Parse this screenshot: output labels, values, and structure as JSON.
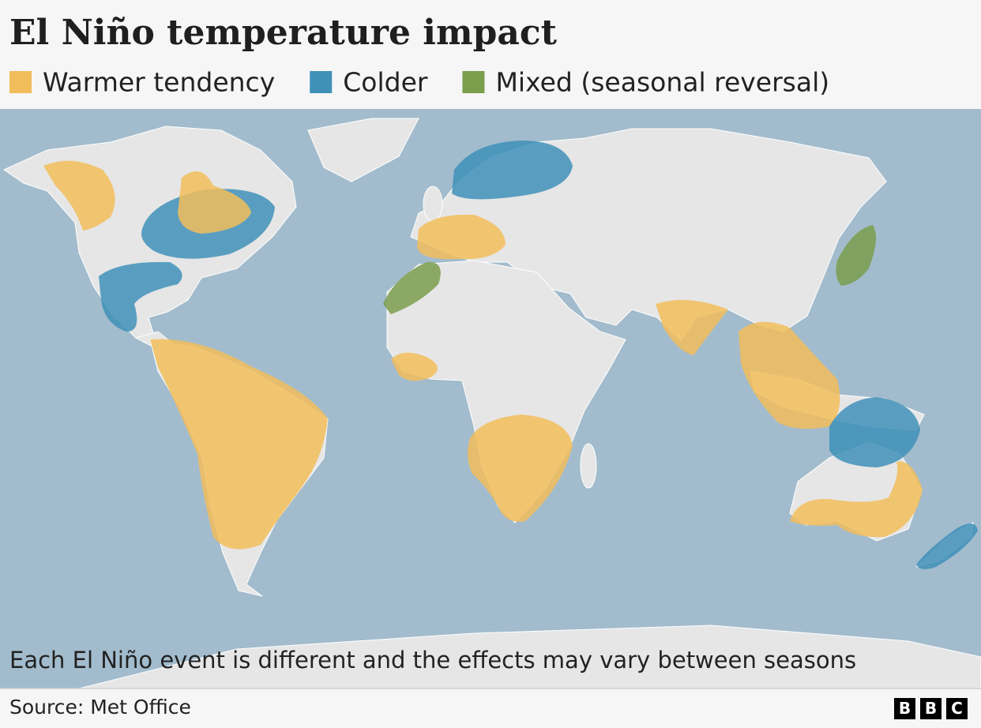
{
  "title": "El Niño temperature impact",
  "legend": [
    {
      "label": "Warmer tendency",
      "color": "#f2bd5b"
    },
    {
      "label": "Colder",
      "color": "#3f91b8"
    },
    {
      "label": "Mixed (seasonal reversal)",
      "color": "#7a9e4c"
    }
  ],
  "note": "Each El Niño event is different and the effects may vary between seasons",
  "source": "Source: Met Office",
  "logo": [
    "B",
    "B",
    "C"
  ]
}
